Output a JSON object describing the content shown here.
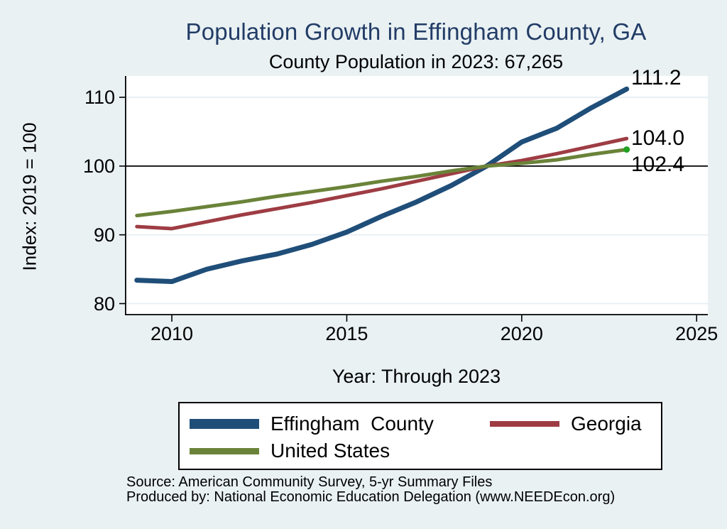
{
  "chart_data": {
    "type": "line",
    "title": "Population Growth in Effingham County, GA",
    "subtitle": "County Population in 2023: 67,265",
    "xlabel": "Year: Through 2023",
    "ylabel": "Index: 2019 = 100",
    "x_ticks": [
      2010,
      2015,
      2020,
      2025
    ],
    "y_ticks": [
      80,
      90,
      100,
      110
    ],
    "x_domain": [
      2008.66,
      2025.32
    ],
    "y_domain": [
      78.3,
      113.1
    ],
    "grid": true,
    "reference_line_y": 100,
    "legend_position": "bottom",
    "x": [
      2009,
      2010,
      2011,
      2012,
      2013,
      2014,
      2015,
      2016,
      2017,
      2018,
      2019,
      2020,
      2021,
      2022,
      2023
    ],
    "series": [
      {
        "name": "Effingham County",
        "legend_label": "Effingham  County",
        "color": "#1f4e79",
        "line_width": 7,
        "swatch_height": 14,
        "end_label": "111.2",
        "values": [
          83.4,
          83.2,
          85.0,
          86.2,
          87.2,
          88.6,
          90.4,
          92.7,
          94.8,
          97.2,
          100,
          103.5,
          105.5,
          108.5,
          111.2
        ]
      },
      {
        "name": "Georgia",
        "legend_label": "Georgia",
        "color": "#9e3c44",
        "line_width": 5,
        "swatch_height": 8,
        "end_label": "104.0",
        "values": [
          91.2,
          90.9,
          91.9,
          92.9,
          93.8,
          94.7,
          95.7,
          96.7,
          97.8,
          98.9,
          100,
          100.8,
          101.8,
          102.9,
          104.0
        ]
      },
      {
        "name": "United States",
        "legend_label": "United States",
        "color": "#6a8339",
        "line_width": 5,
        "swatch_height": 9,
        "end_label": "102.4",
        "end_marker_color": "#22a022",
        "values": [
          92.8,
          93.4,
          94.1,
          94.8,
          95.6,
          96.3,
          97.0,
          97.8,
          98.5,
          99.3,
          100,
          100.4,
          100.9,
          101.7,
          102.4
        ]
      }
    ],
    "colors": {
      "background": "#e9f1f3",
      "plot_background": "#ffffff",
      "gridline": "#e3eef3",
      "axis": "#000000",
      "title": "#223c66"
    }
  },
  "source": {
    "line1": "Source: American Community Survey, 5-yr Summary Files",
    "line2": "Produced by: National Economic Education Delegation (www.NEEDEcon.org)"
  }
}
